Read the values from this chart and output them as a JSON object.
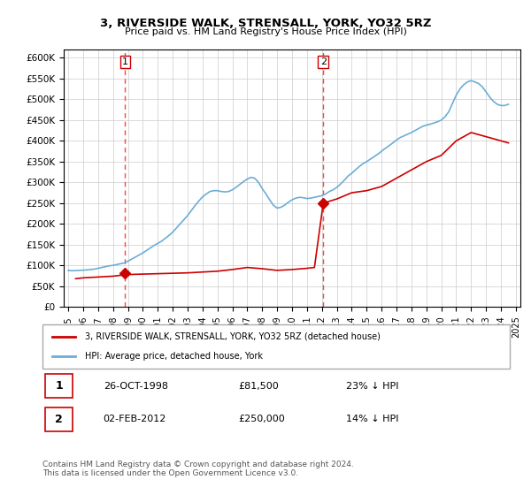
{
  "title": "3, RIVERSIDE WALK, STRENSALL, YORK, YO32 5RZ",
  "subtitle": "Price paid vs. HM Land Registry's House Price Index (HPI)",
  "xlabel": "",
  "ylabel": "",
  "ylim": [
    0,
    620000
  ],
  "yticks": [
    0,
    50000,
    100000,
    150000,
    200000,
    250000,
    300000,
    350000,
    400000,
    450000,
    500000,
    550000,
    600000
  ],
  "ytick_labels": [
    "£0",
    "£50K",
    "£100K",
    "£150K",
    "£200K",
    "£250K",
    "£300K",
    "£350K",
    "£400K",
    "£450K",
    "£500K",
    "£550K",
    "£600K"
  ],
  "sale1_date": 1998.82,
  "sale1_price": 81500,
  "sale1_label": "1",
  "sale1_text": "26-OCT-1998",
  "sale1_amount": "£81,500",
  "sale1_hpi": "23% ↓ HPI",
  "sale2_date": 2012.09,
  "sale2_price": 250000,
  "sale2_label": "2",
  "sale2_text": "02-FEB-2012",
  "sale2_amount": "£250,000",
  "sale2_hpi": "14% ↓ HPI",
  "hpi_color": "#6baed6",
  "price_color": "#cc0000",
  "vline_color": "#ff4444",
  "marker_color": "#cc0000",
  "background_color": "#ffffff",
  "grid_color": "#cccccc",
  "hpi_data_x": [
    1995,
    1995.25,
    1995.5,
    1995.75,
    1996,
    1996.25,
    1996.5,
    1996.75,
    1997,
    1997.25,
    1997.5,
    1997.75,
    1998,
    1998.25,
    1998.5,
    1998.75,
    1999,
    1999.25,
    1999.5,
    1999.75,
    2000,
    2000.25,
    2000.5,
    2000.75,
    2001,
    2001.25,
    2001.5,
    2001.75,
    2002,
    2002.25,
    2002.5,
    2002.75,
    2003,
    2003.25,
    2003.5,
    2003.75,
    2004,
    2004.25,
    2004.5,
    2004.75,
    2005,
    2005.25,
    2005.5,
    2005.75,
    2006,
    2006.25,
    2006.5,
    2006.75,
    2007,
    2007.25,
    2007.5,
    2007.75,
    2008,
    2008.25,
    2008.5,
    2008.75,
    2009,
    2009.25,
    2009.5,
    2009.75,
    2010,
    2010.25,
    2010.5,
    2010.75,
    2011,
    2011.25,
    2011.5,
    2011.75,
    2012,
    2012.25,
    2012.5,
    2012.75,
    2013,
    2013.25,
    2013.5,
    2013.75,
    2014,
    2014.25,
    2014.5,
    2014.75,
    2015,
    2015.25,
    2015.5,
    2015.75,
    2016,
    2016.25,
    2016.5,
    2016.75,
    2017,
    2017.25,
    2017.5,
    2017.75,
    2018,
    2018.25,
    2018.5,
    2018.75,
    2019,
    2019.25,
    2019.5,
    2019.75,
    2020,
    2020.25,
    2020.5,
    2020.75,
    2021,
    2021.25,
    2021.5,
    2021.75,
    2022,
    2022.25,
    2022.5,
    2022.75,
    2023,
    2023.25,
    2023.5,
    2023.75,
    2024,
    2024.25,
    2024.5
  ],
  "hpi_data_y": [
    88000,
    87000,
    87500,
    88000,
    88500,
    89000,
    90000,
    91000,
    93000,
    95000,
    97000,
    99000,
    100000,
    102000,
    104000,
    106000,
    110000,
    115000,
    120000,
    125000,
    130000,
    136000,
    142000,
    148000,
    153000,
    158000,
    165000,
    172000,
    180000,
    190000,
    200000,
    210000,
    220000,
    232000,
    244000,
    255000,
    265000,
    272000,
    278000,
    280000,
    280000,
    278000,
    277000,
    278000,
    282000,
    288000,
    295000,
    302000,
    308000,
    312000,
    310000,
    300000,
    285000,
    272000,
    258000,
    245000,
    238000,
    240000,
    245000,
    252000,
    258000,
    262000,
    264000,
    263000,
    261000,
    262000,
    264000,
    266000,
    268000,
    272000,
    278000,
    282000,
    288000,
    296000,
    305000,
    315000,
    322000,
    330000,
    338000,
    345000,
    350000,
    356000,
    362000,
    368000,
    375000,
    382000,
    388000,
    395000,
    402000,
    408000,
    412000,
    416000,
    420000,
    425000,
    430000,
    435000,
    438000,
    440000,
    443000,
    446000,
    450000,
    458000,
    470000,
    490000,
    510000,
    525000,
    535000,
    542000,
    545000,
    542000,
    538000,
    530000,
    518000,
    505000,
    495000,
    488000,
    485000,
    485000,
    488000
  ],
  "price_data_x": [
    1995.5,
    1996.0,
    1997.0,
    1998.0,
    1998.5,
    1999.0,
    1999.5,
    2000.0,
    2000.5,
    2001.0,
    2002.0,
    2003.0,
    2004.0,
    2005.0,
    2006.0,
    2007.0,
    2008.0,
    2009.0,
    2010.0,
    2011.0,
    2011.5,
    2012.09,
    2013.0,
    2014.0,
    2015.0,
    2016.0,
    2017.0,
    2018.0,
    2019.0,
    2020.0,
    2021.0,
    2022.0,
    2023.0,
    2024.0,
    2024.5
  ],
  "price_data_y": [
    68000,
    70000,
    72000,
    74000,
    76000,
    78000,
    78500,
    79000,
    79500,
    80000,
    81000,
    82000,
    84000,
    86000,
    90000,
    95000,
    92000,
    88000,
    90000,
    93000,
    95000,
    250000,
    260000,
    275000,
    280000,
    290000,
    310000,
    330000,
    350000,
    365000,
    400000,
    420000,
    410000,
    400000,
    395000
  ],
  "footer_text": "Contains HM Land Registry data © Crown copyright and database right 2024.\nThis data is licensed under the Open Government Licence v3.0.",
  "legend_label_price": "3, RIVERSIDE WALK, STRENSALL, YORK, YO32 5RZ (detached house)",
  "legend_label_hpi": "HPI: Average price, detached house, York"
}
